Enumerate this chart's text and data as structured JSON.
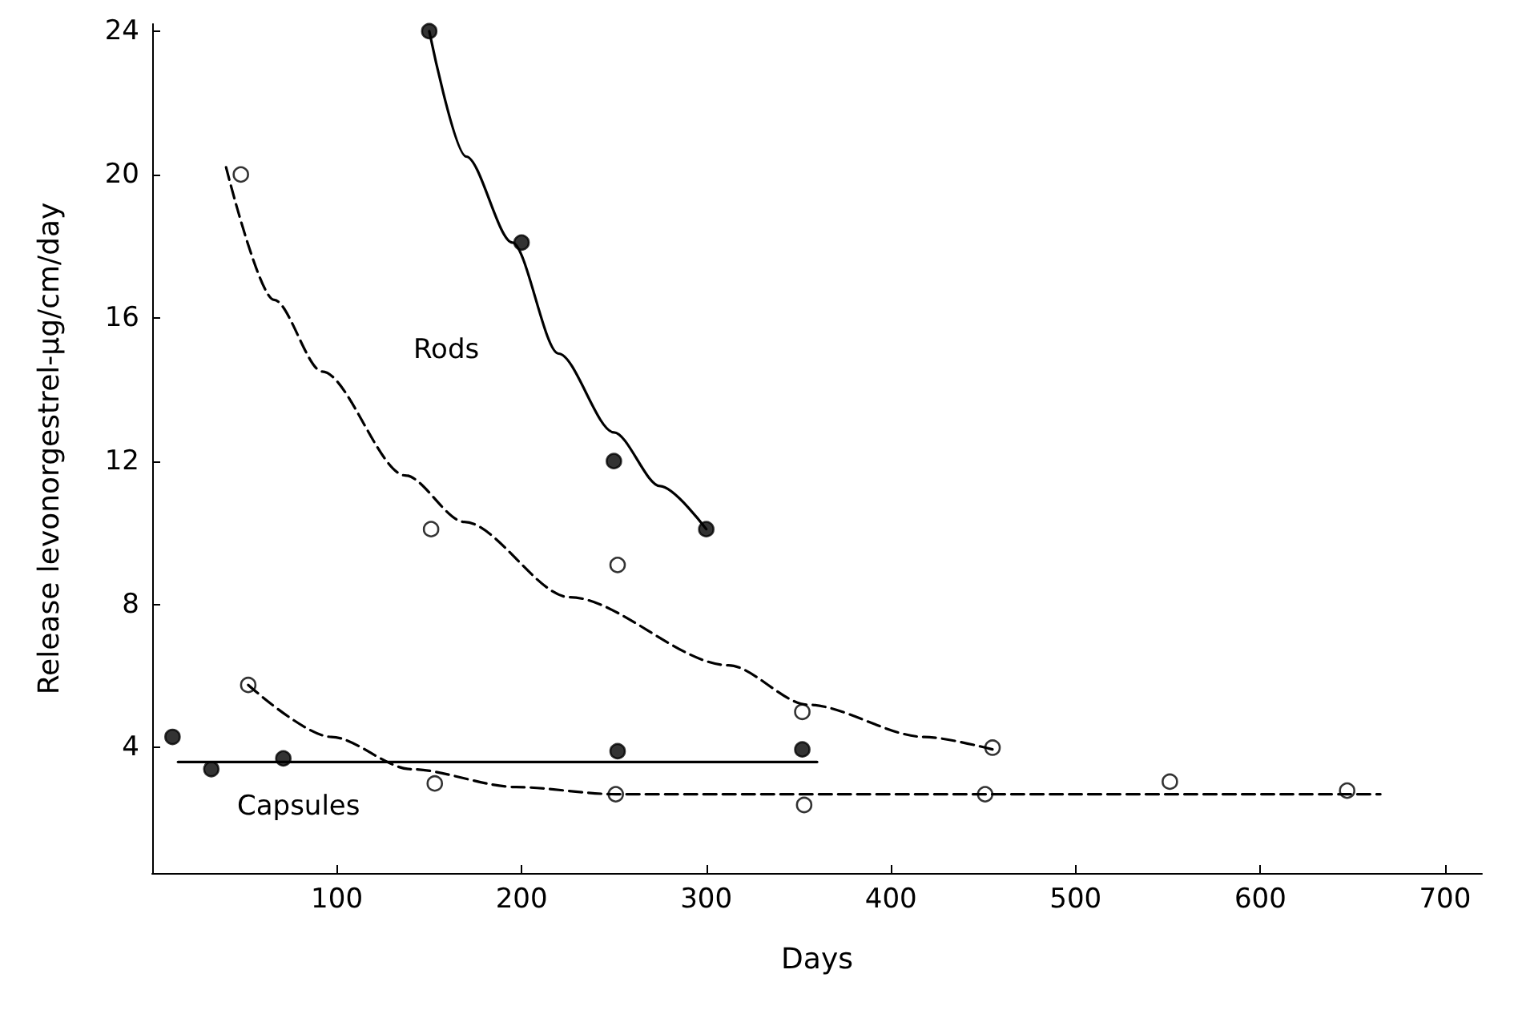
{
  "chart_data": {
    "type": "scatter",
    "xlabel": "Days",
    "ylabel": "Release levonorgestrel-μg/cm/day",
    "xlim": [
      0,
      720
    ],
    "xticks": [
      100,
      200,
      300,
      400,
      500,
      600,
      700
    ],
    "ylim": [
      0.5,
      24.2
    ],
    "yticks": [
      4,
      8,
      12,
      16,
      20,
      24
    ],
    "grid": false,
    "annotations": [
      "Rods",
      "Capsules"
    ],
    "series": [
      {
        "marker": "circle",
        "color": "#000000",
        "x": [
          150,
          200,
          250,
          300
        ],
        "values": [
          24,
          18.1,
          12,
          10.1
        ]
      },
      {
        "marker": "circle",
        "color": "#ffffff",
        "x": [
          48,
          151,
          252,
          352,
          455
        ],
        "values": [
          20,
          10.1,
          9.1,
          5,
          4
        ]
      },
      {
        "marker": "circle",
        "color": "#ffffff",
        "x": [
          52,
          153,
          251,
          353,
          451,
          551,
          647
        ],
        "values": [
          5.75,
          3,
          2.7,
          2.4,
          2.7,
          3.05,
          2.8
        ]
      },
      {
        "marker": "circle",
        "color": "#000000",
        "x": [
          11,
          32,
          71,
          252,
          352
        ],
        "values": [
          4.3,
          3.4,
          3.7,
          3.9,
          3.95
        ]
      },
      {
        "type": "line",
        "marker": "none",
        "line_style": "solid",
        "color": "#000000",
        "x": [
          150,
          170,
          195,
          220,
          250,
          275,
          300
        ],
        "values": [
          24,
          20.5,
          18.1,
          15,
          12.8,
          11.3,
          10.1
        ]
      },
      {
        "type": "line",
        "marker": "none",
        "line_style": "dashed",
        "color": "#000000",
        "x": [
          40,
          66,
          92,
          137,
          169,
          226,
          312,
          355,
          418,
          455
        ],
        "values": [
          20.2,
          16.5,
          14.5,
          11.6,
          10.3,
          8.2,
          6.3,
          5.2,
          4.3,
          3.95
        ]
      },
      {
        "type": "line",
        "marker": "none",
        "line_style": "dashed",
        "color": "#000000",
        "x": [
          52,
          97,
          140,
          197,
          251,
          665
        ],
        "values": [
          5.75,
          4.3,
          3.4,
          2.9,
          2.7,
          2.7
        ]
      },
      {
        "type": "line",
        "marker": "none",
        "line_style": "solid",
        "color": "#000000",
        "x": [
          14,
          360
        ],
        "values": [
          3.6,
          3.6
        ]
      }
    ]
  }
}
